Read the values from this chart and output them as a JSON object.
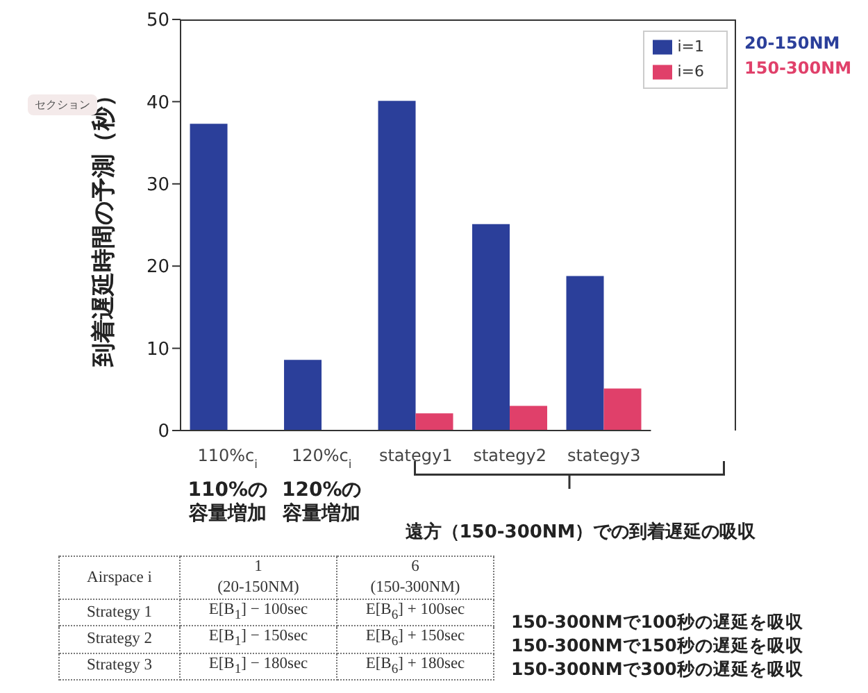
{
  "chart_data": {
    "type": "bar",
    "ylabel": "到着遅延時間の予測（秒）",
    "categories": [
      "110%c$_{i}$\n110%の容量増加",
      "120%c$_{i}$\n120%の容量増加",
      "stategy1",
      "stategy2",
      "stategy3"
    ],
    "series": [
      {
        "name": "i=1",
        "color": "#2b3f9a",
        "values": [
          37.3,
          8.6,
          40.1,
          25.1,
          18.8
        ]
      },
      {
        "name": "i=6",
        "color": "#e0406a",
        "values": [
          null,
          null,
          2.1,
          3.0,
          5.1
        ]
      }
    ],
    "ylim": [
      0,
      50
    ],
    "yticks": [
      0,
      10,
      20,
      30,
      40,
      50
    ],
    "grid": false,
    "legend": "top right",
    "annotations": [
      "セクション",
      "20-150NM",
      "150-300NM",
      "遠方（150-300NM）での到着遅延の吸収",
      "Airspace i",
      "1\n(20-150NM)",
      "6\n(150-300NM)",
      "Strategy 1",
      "E[B$_{1}$] − 100sec",
      "E[B$_{6}$] + 100sec",
      "Strategy 2",
      "E[B$_{1}$] − 150sec",
      "E[B$_{6}$] + 150sec",
      "Strategy 3",
      "E[B$_{1}$] − 180sec",
      "E[B$_{6}$] + 180sec",
      "150-300NMで100秒の遅延を吸収",
      "150-300NMで150秒の遅延を吸収",
      "150-300NMで300秒の遅延を吸収"
    ]
  }
}
